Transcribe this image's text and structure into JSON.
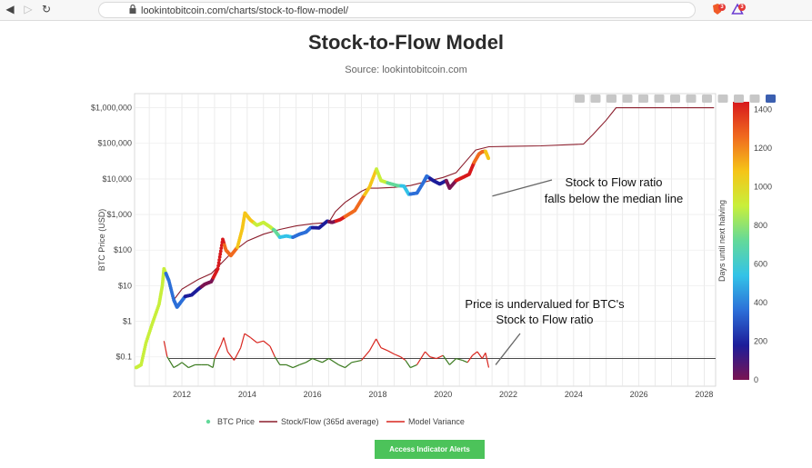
{
  "browser": {
    "url": "lookintobitcoin.com/charts/stock-to-flow-model/",
    "nav_icons": [
      "back-icon",
      "forward-icon",
      "reload-icon",
      "bookmark-icon",
      "lock-icon"
    ],
    "extension_badges": [
      "3",
      "3"
    ]
  },
  "page": {
    "title": "Stock-to-Flow Model",
    "subtitle": "Source: lookintobitcoin.com",
    "button_label": "Access Indicator Alerts"
  },
  "colors": {
    "price_gradient": [
      "#7a1452",
      "#1d1d9a",
      "#2c6fd8",
      "#33c3e8",
      "#63d99a",
      "#c8ef3b",
      "#f5c518",
      "#f06a1f",
      "#d7191c"
    ],
    "stock_flow": "#8b1d2c",
    "variance_positive": "#d8261f",
    "variance_negative": "#3a7a1e",
    "button": "#4cc35a"
  },
  "toolbar": [
    "camera-icon",
    "zoom-icon",
    "pan-icon",
    "box-select-icon",
    "lasso-icon",
    "zoom-in-icon",
    "zoom-out-icon",
    "autoscale-icon",
    "home-icon",
    "spike-lines-icon",
    "hover-closest-icon",
    "hover-compare-icon",
    "plotly-logo-icon"
  ],
  "chart_data": {
    "type": "line",
    "title": "Stock-to-Flow Model",
    "subtitle": "Source: lookintobitcoin.com",
    "xlabel": "",
    "ylabel": "BTC Price (USD)",
    "yscale": "log",
    "xlim": [
      2010.55,
      2028.35
    ],
    "ylim": [
      0.015,
      2500000
    ],
    "x_ticks": [
      "2012",
      "2014",
      "2016",
      "2018",
      "2020",
      "2022",
      "2024",
      "2026",
      "2028"
    ],
    "y_ticks": [
      "$0.1",
      "$1",
      "$10",
      "$100",
      "$1,000",
      "$10,000",
      "$100,000",
      "$1,000,000"
    ],
    "y_tick_values": [
      0.1,
      1,
      10,
      100,
      1000,
      10000,
      100000,
      1000000
    ],
    "grid": true,
    "legend_position": "bottom",
    "colorbar": {
      "label": "Days until next halving",
      "ticks": [
        "0",
        "200",
        "400",
        "600",
        "800",
        "1000",
        "1200",
        "1400"
      ],
      "tick_values": [
        0,
        200,
        400,
        600,
        800,
        1000,
        1200,
        1400
      ],
      "range": [
        0,
        1440
      ]
    },
    "annotations": [
      {
        "lines": [
          "Stock to Flow ratio",
          "falls below the median line"
        ],
        "target": [
          2021.4,
          3300
        ]
      },
      {
        "lines": [
          "Price is undervalued for BTC's",
          "Stock to Flow ratio"
        ],
        "target": [
          2021.5,
          0.06
        ]
      }
    ],
    "series": [
      {
        "name": "BTC Price",
        "kind": "markers-colored",
        "points": [
          [
            2010.6,
            0.05
          ],
          [
            2010.75,
            0.06
          ],
          [
            2010.9,
            0.25
          ],
          [
            2011.1,
            0.9
          ],
          [
            2011.3,
            3
          ],
          [
            2011.4,
            10
          ],
          [
            2011.45,
            30
          ],
          [
            2011.6,
            14
          ],
          [
            2011.75,
            4
          ],
          [
            2011.85,
            2.5
          ],
          [
            2011.95,
            3.3
          ],
          [
            2012.1,
            5
          ],
          [
            2012.3,
            5.5
          ],
          [
            2012.5,
            8
          ],
          [
            2012.7,
            11
          ],
          [
            2012.9,
            13
          ],
          [
            2013.1,
            30
          ],
          [
            2013.25,
            200
          ],
          [
            2013.35,
            100
          ],
          [
            2013.5,
            70
          ],
          [
            2013.7,
            120
          ],
          [
            2013.85,
            400
          ],
          [
            2013.93,
            1100
          ],
          [
            2014.1,
            700
          ],
          [
            2014.3,
            500
          ],
          [
            2014.5,
            600
          ],
          [
            2014.7,
            450
          ],
          [
            2014.85,
            350
          ],
          [
            2015.0,
            230
          ],
          [
            2015.2,
            250
          ],
          [
            2015.4,
            230
          ],
          [
            2015.6,
            280
          ],
          [
            2015.8,
            320
          ],
          [
            2015.95,
            430
          ],
          [
            2016.2,
            420
          ],
          [
            2016.45,
            650
          ],
          [
            2016.6,
            600
          ],
          [
            2016.85,
            720
          ],
          [
            2017.1,
            1000
          ],
          [
            2017.3,
            1300
          ],
          [
            2017.5,
            2600
          ],
          [
            2017.75,
            6000
          ],
          [
            2017.96,
            19000
          ],
          [
            2018.1,
            9000
          ],
          [
            2018.35,
            7500
          ],
          [
            2018.6,
            6500
          ],
          [
            2018.8,
            6300
          ],
          [
            2018.95,
            3700
          ],
          [
            2019.2,
            4000
          ],
          [
            2019.4,
            8000
          ],
          [
            2019.5,
            12000
          ],
          [
            2019.7,
            9000
          ],
          [
            2019.9,
            7200
          ],
          [
            2020.1,
            9000
          ],
          [
            2020.2,
            5500
          ],
          [
            2020.4,
            9000
          ],
          [
            2020.6,
            11000
          ],
          [
            2020.8,
            13500
          ],
          [
            2020.95,
            29000
          ],
          [
            2021.1,
            50000
          ],
          [
            2021.2,
            58000
          ],
          [
            2021.3,
            60000
          ],
          [
            2021.4,
            36000
          ]
        ],
        "colors": [
          [
            "2010.5",
            "#c8ef3b"
          ],
          [
            "2011.5",
            "#2c6fd8"
          ],
          [
            "2012.1",
            "#1d1d9a"
          ],
          [
            "2012.6",
            "#7a1452"
          ],
          [
            "2012.95",
            "#d7191c"
          ],
          [
            "2013.3",
            "#f06a1f"
          ],
          [
            "2013.7",
            "#f5c518"
          ],
          [
            "2014.2",
            "#c8ef3b"
          ],
          [
            "2014.8",
            "#63d99a"
          ],
          [
            "2015.0",
            "#33c3e8"
          ],
          [
            "2015.4",
            "#2c6fd8"
          ],
          [
            "2016.0",
            "#1d1d9a"
          ],
          [
            "2016.5",
            "#7a1452"
          ],
          [
            "2016.7",
            "#d7191c"
          ],
          [
            "2017.0",
            "#f06a1f"
          ],
          [
            "2017.6",
            "#f5c518"
          ],
          [
            "2017.95",
            "#c8ef3b"
          ],
          [
            "2018.3",
            "#63d99a"
          ],
          [
            "2018.7",
            "#33c3e8"
          ],
          [
            "2019.0",
            "#2c6fd8"
          ],
          [
            "2019.6",
            "#1d1d9a"
          ],
          [
            "2020.1",
            "#7a1452"
          ],
          [
            "2020.4",
            "#d7191c"
          ],
          [
            "2020.95",
            "#f06a1f"
          ],
          [
            "2021.3",
            "#f5c518"
          ]
        ]
      },
      {
        "name": "Stock/Flow (365d average)",
        "kind": "line",
        "points": [
          [
            2011.75,
            4
          ],
          [
            2012.0,
            8
          ],
          [
            2012.5,
            15
          ],
          [
            2012.9,
            22
          ],
          [
            2013.5,
            80
          ],
          [
            2014.0,
            180
          ],
          [
            2014.5,
            280
          ],
          [
            2015.0,
            380
          ],
          [
            2015.5,
            480
          ],
          [
            2016.0,
            550
          ],
          [
            2016.5,
            600
          ],
          [
            2016.7,
            1200
          ],
          [
            2017.0,
            2200
          ],
          [
            2017.5,
            4500
          ],
          [
            2017.7,
            5500
          ],
          [
            2018.0,
            5500
          ],
          [
            2018.5,
            5800
          ],
          [
            2019.0,
            6500
          ],
          [
            2019.5,
            8500
          ],
          [
            2020.0,
            11000
          ],
          [
            2020.4,
            15000
          ],
          [
            2020.8,
            40000
          ],
          [
            2021.0,
            65000
          ],
          [
            2021.4,
            80000
          ],
          [
            2022.0,
            82000
          ],
          [
            2023.0,
            85000
          ],
          [
            2024.3,
            95000
          ],
          [
            2024.6,
            180000
          ],
          [
            2025.0,
            450000
          ],
          [
            2025.3,
            1000000
          ],
          [
            2026.0,
            1000000
          ],
          [
            2027.0,
            1000000
          ],
          [
            2028.3,
            1000000
          ]
        ]
      },
      {
        "name": "Model Variance",
        "kind": "line-variance",
        "baseline": 0.09,
        "points": [
          [
            2011.45,
            0.28
          ],
          [
            2011.55,
            0.1
          ],
          [
            2011.75,
            0.05
          ],
          [
            2011.9,
            0.06
          ],
          [
            2012.0,
            0.07
          ],
          [
            2012.2,
            0.05
          ],
          [
            2012.4,
            0.06
          ],
          [
            2012.6,
            0.06
          ],
          [
            2012.8,
            0.06
          ],
          [
            2012.95,
            0.05
          ],
          [
            2013.0,
            0.09
          ],
          [
            2013.2,
            0.22
          ],
          [
            2013.28,
            0.35
          ],
          [
            2013.4,
            0.14
          ],
          [
            2013.6,
            0.08
          ],
          [
            2013.8,
            0.18
          ],
          [
            2013.92,
            0.45
          ],
          [
            2014.1,
            0.35
          ],
          [
            2014.3,
            0.25
          ],
          [
            2014.5,
            0.28
          ],
          [
            2014.7,
            0.2
          ],
          [
            2014.85,
            0.1
          ],
          [
            2015.0,
            0.06
          ],
          [
            2015.2,
            0.06
          ],
          [
            2015.4,
            0.05
          ],
          [
            2015.6,
            0.06
          ],
          [
            2015.8,
            0.07
          ],
          [
            2016.0,
            0.09
          ],
          [
            2016.3,
            0.07
          ],
          [
            2016.5,
            0.09
          ],
          [
            2016.8,
            0.06
          ],
          [
            2017.0,
            0.05
          ],
          [
            2017.2,
            0.07
          ],
          [
            2017.5,
            0.08
          ],
          [
            2017.75,
            0.15
          ],
          [
            2017.95,
            0.32
          ],
          [
            2018.1,
            0.18
          ],
          [
            2018.3,
            0.15
          ],
          [
            2018.5,
            0.12
          ],
          [
            2018.7,
            0.1
          ],
          [
            2018.85,
            0.08
          ],
          [
            2019.0,
            0.05
          ],
          [
            2019.2,
            0.06
          ],
          [
            2019.45,
            0.14
          ],
          [
            2019.6,
            0.1
          ],
          [
            2019.8,
            0.09
          ],
          [
            2020.0,
            0.11
          ],
          [
            2020.2,
            0.06
          ],
          [
            2020.4,
            0.09
          ],
          [
            2020.6,
            0.08
          ],
          [
            2020.75,
            0.07
          ],
          [
            2020.9,
            0.11
          ],
          [
            2021.05,
            0.14
          ],
          [
            2021.2,
            0.09
          ],
          [
            2021.3,
            0.13
          ],
          [
            2021.4,
            0.05
          ]
        ]
      }
    ]
  },
  "legend": [
    {
      "label": "BTC Price",
      "color": "#63d99a",
      "marker": "dot"
    },
    {
      "label": "Stock/Flow (365d average)",
      "color": "#8b1d2c",
      "marker": "line"
    },
    {
      "label": "Model Variance",
      "color": "#d8261f",
      "marker": "line"
    }
  ]
}
